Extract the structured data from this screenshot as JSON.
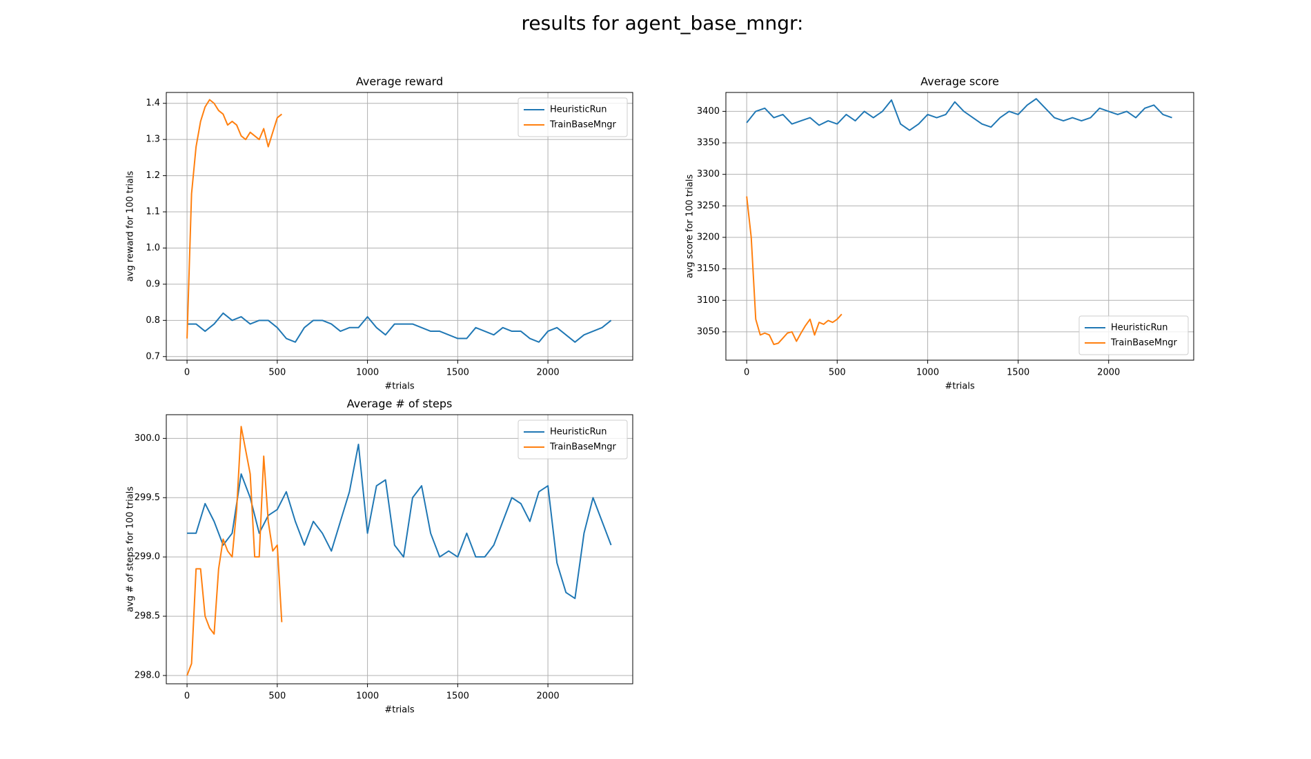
{
  "title": "results for agent_base_mngr:",
  "chart_data": [
    {
      "type": "line",
      "title": "Average reward",
      "xlabel": "#trials",
      "ylabel": "avg reward for 100 trials",
      "xlim": [
        -115,
        2470
      ],
      "xticks": [
        0,
        500,
        1000,
        1500,
        2000
      ],
      "ylim": [
        0.69,
        1.43
      ],
      "yticks": [
        0.7,
        0.8,
        0.9,
        {
          "value": 1,
          "label": "1.0"
        },
        1.1,
        1.2,
        1.3,
        1.4
      ],
      "grid": true,
      "legend": "upper right",
      "series": [
        {
          "name": "HeuristicRun",
          "color": "#1f77b4",
          "x": [
            0,
            50,
            100,
            150,
            200,
            250,
            300,
            350,
            400,
            450,
            500,
            550,
            600,
            650,
            700,
            750,
            800,
            850,
            900,
            950,
            1000,
            1050,
            1100,
            1150,
            1200,
            1250,
            1300,
            1350,
            1400,
            1450,
            1500,
            1550,
            1600,
            1650,
            1700,
            1750,
            1800,
            1850,
            1900,
            1950,
            2000,
            2050,
            2100,
            2150,
            2200,
            2250,
            2300,
            2350
          ],
          "values": [
            0.79,
            0.79,
            0.77,
            0.79,
            0.82,
            0.8,
            0.81,
            0.79,
            0.8,
            0.8,
            0.78,
            0.75,
            0.74,
            0.78,
            0.8,
            0.8,
            0.79,
            0.77,
            0.78,
            0.78,
            0.81,
            0.78,
            0.76,
            0.79,
            0.79,
            0.79,
            0.78,
            0.77,
            0.77,
            0.76,
            0.75,
            0.75,
            0.78,
            0.77,
            0.76,
            0.78,
            0.77,
            0.77,
            0.75,
            0.74,
            0.77,
            0.78,
            0.76,
            0.74,
            0.76,
            0.77,
            0.78,
            0.8
          ]
        },
        {
          "name": "TrainBaseMngr",
          "color": "#ff7f0e",
          "x": [
            0,
            25,
            50,
            75,
            100,
            125,
            150,
            175,
            200,
            225,
            250,
            275,
            300,
            325,
            350,
            375,
            400,
            425,
            450,
            475,
            500,
            525
          ],
          "values": [
            0.75,
            1.15,
            1.28,
            1.35,
            1.39,
            1.41,
            1.4,
            1.38,
            1.37,
            1.34,
            1.35,
            1.34,
            1.31,
            1.3,
            1.32,
            1.31,
            1.3,
            1.33,
            1.28,
            1.32,
            1.36,
            1.37
          ]
        }
      ]
    },
    {
      "type": "line",
      "title": "Average score",
      "xlabel": "#trials",
      "ylabel": "avg score for 100 trials",
      "xlim": [
        -115,
        2470
      ],
      "xticks": [
        0,
        500,
        1000,
        1500,
        2000
      ],
      "ylim": [
        3005,
        3430
      ],
      "yticks": [
        3050,
        3100,
        3150,
        3200,
        3250,
        3300,
        3350,
        3400
      ],
      "grid": true,
      "legend": "lower right",
      "series": [
        {
          "name": "HeuristicRun",
          "color": "#1f77b4",
          "x": [
            0,
            50,
            100,
            150,
            200,
            250,
            300,
            350,
            400,
            450,
            500,
            550,
            600,
            650,
            700,
            750,
            800,
            850,
            900,
            950,
            1000,
            1050,
            1100,
            1150,
            1200,
            1250,
            1300,
            1350,
            1400,
            1450,
            1500,
            1550,
            1600,
            1650,
            1700,
            1750,
            1800,
            1850,
            1900,
            1950,
            2000,
            2050,
            2100,
            2150,
            2200,
            2250,
            2300,
            2350
          ],
          "values": [
            3382,
            3400,
            3405,
            3390,
            3395,
            3380,
            3385,
            3390,
            3378,
            3385,
            3380,
            3395,
            3385,
            3400,
            3390,
            3400,
            3418,
            3380,
            3370,
            3380,
            3395,
            3390,
            3395,
            3415,
            3400,
            3390,
            3380,
            3375,
            3390,
            3400,
            3395,
            3410,
            3420,
            3405,
            3390,
            3385,
            3390,
            3385,
            3390,
            3405,
            3400,
            3395,
            3400,
            3390,
            3405,
            3410,
            3395,
            3390
          ]
        },
        {
          "name": "TrainBaseMngr",
          "color": "#ff7f0e",
          "x": [
            0,
            25,
            50,
            75,
            100,
            125,
            150,
            175,
            200,
            225,
            250,
            275,
            300,
            325,
            350,
            375,
            400,
            425,
            450,
            475,
            500,
            525
          ],
          "values": [
            3265,
            3200,
            3070,
            3045,
            3048,
            3045,
            3030,
            3032,
            3040,
            3048,
            3050,
            3035,
            3048,
            3060,
            3070,
            3045,
            3065,
            3062,
            3068,
            3065,
            3070,
            3078
          ]
        }
      ]
    },
    {
      "type": "line",
      "title": "Average # of steps",
      "xlabel": "#trials",
      "ylabel": "avg # of steps for 100 trials",
      "xlim": [
        -115,
        2470
      ],
      "xticks": [
        0,
        500,
        1000,
        1500,
        2000
      ],
      "ylim": [
        297.93,
        300.2
      ],
      "yticks": [
        {
          "value": 298,
          "label": "298.0"
        },
        298.5,
        {
          "value": 299,
          "label": "299.0"
        },
        299.5,
        {
          "value": 300,
          "label": "300.0"
        }
      ],
      "grid": true,
      "legend": "upper right",
      "series": [
        {
          "name": "HeuristicRun",
          "color": "#1f77b4",
          "x": [
            0,
            50,
            100,
            150,
            200,
            250,
            300,
            350,
            400,
            450,
            500,
            550,
            600,
            650,
            700,
            750,
            800,
            850,
            900,
            950,
            1000,
            1050,
            1100,
            1150,
            1200,
            1250,
            1300,
            1350,
            1400,
            1450,
            1500,
            1550,
            1600,
            1650,
            1700,
            1750,
            1800,
            1850,
            1900,
            1950,
            2000,
            2050,
            2100,
            2150,
            2200,
            2250,
            2300,
            2350
          ],
          "values": [
            299.2,
            299.2,
            299.45,
            299.3,
            299.1,
            299.2,
            299.7,
            299.5,
            299.2,
            299.35,
            299.4,
            299.55,
            299.3,
            299.1,
            299.3,
            299.2,
            299.05,
            299.3,
            299.55,
            299.95,
            299.2,
            299.6,
            299.65,
            299.1,
            299.0,
            299.5,
            299.6,
            299.2,
            299.0,
            299.05,
            299.0,
            299.2,
            299.0,
            299.0,
            299.1,
            299.3,
            299.5,
            299.45,
            299.3,
            299.55,
            299.6,
            298.95,
            298.7,
            298.65,
            299.2,
            299.5,
            299.3,
            299.1
          ]
        },
        {
          "name": "TrainBaseMngr",
          "color": "#ff7f0e",
          "x": [
            0,
            25,
            50,
            75,
            100,
            125,
            150,
            175,
            200,
            225,
            250,
            275,
            300,
            325,
            350,
            375,
            400,
            425,
            450,
            475,
            500,
            525
          ],
          "values": [
            298.0,
            298.1,
            298.9,
            298.9,
            298.5,
            298.4,
            298.35,
            298.9,
            299.15,
            299.05,
            299.0,
            299.4,
            300.1,
            299.9,
            299.7,
            299.0,
            299.0,
            299.85,
            299.3,
            299.05,
            299.1,
            298.45
          ]
        }
      ]
    }
  ]
}
